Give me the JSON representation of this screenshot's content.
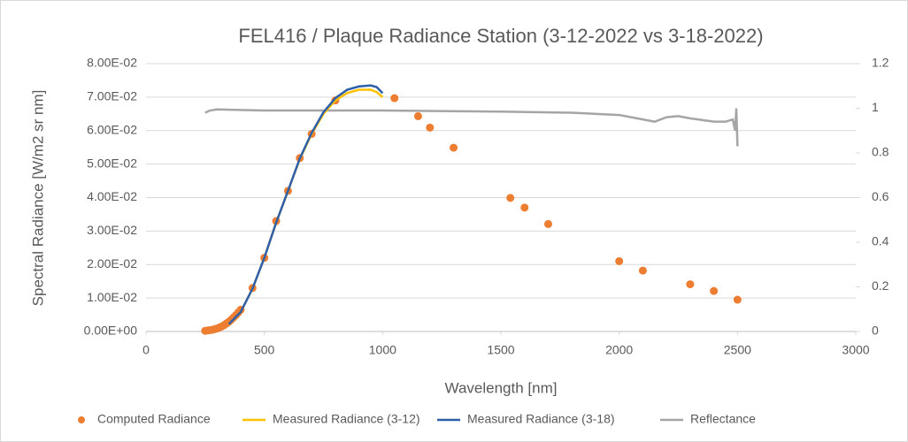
{
  "chart_data": {
    "type": "line",
    "title": "FEL416 / Plaque Radiance Station (3-12-2022 vs 3-18-2022)",
    "x_label": "Wavelength [nm]",
    "y_label": "Spectral Radiance [W/m2 sr nm]",
    "xlim": [
      0,
      3000
    ],
    "xticks": [
      0,
      500,
      1000,
      1500,
      2000,
      2500,
      3000
    ],
    "ylim": [
      0,
      0.08
    ],
    "yticks": [
      {
        "value": 0,
        "label": "0.00E+00"
      },
      {
        "value": 0.01,
        "label": "1.00E-02"
      },
      {
        "value": 0.02,
        "label": "2.00E-02"
      },
      {
        "value": 0.03,
        "label": "3.00E-02"
      },
      {
        "value": 0.04,
        "label": "4.00E-02"
      },
      {
        "value": 0.05,
        "label": "5.00E-02"
      },
      {
        "value": 0.06,
        "label": "6.00E-02"
      },
      {
        "value": 0.07,
        "label": "7.00E-02"
      },
      {
        "value": 0.08,
        "label": "8.00E-02"
      }
    ],
    "y2lim": [
      0,
      1.2
    ],
    "y2ticks": [
      0,
      0.2,
      0.4,
      0.6,
      0.8,
      1,
      1.2
    ],
    "grid": true,
    "legend": "bottom",
    "series": [
      {
        "name": "Computed Radiance",
        "type": "scatter",
        "color": "#ed7d31",
        "x": [
          250,
          260,
          270,
          280,
          290,
          300,
          310,
          320,
          330,
          340,
          350,
          360,
          370,
          380,
          390,
          400,
          450,
          500,
          550,
          600,
          650,
          700,
          800,
          1050,
          1150,
          1200,
          1300,
          1540,
          1600,
          1700,
          2000,
          2100,
          2300,
          2400,
          2500
        ],
        "values": [
          0.0002,
          0.0003,
          0.0004,
          0.0005,
          0.0007,
          0.0009,
          0.0012,
          0.0015,
          0.0019,
          0.0024,
          0.0029,
          0.0035,
          0.0042,
          0.0049,
          0.0057,
          0.0065,
          0.013,
          0.022,
          0.033,
          0.042,
          0.0518,
          0.059,
          0.069,
          0.0697,
          0.0643,
          0.0609,
          0.0549,
          0.0399,
          0.037,
          0.0321,
          0.021,
          0.0182,
          0.0141,
          0.0121,
          0.0095
        ]
      },
      {
        "name": "Measured Radiance (3-12)",
        "type": "line",
        "color": "#ffc000",
        "x": [
          350,
          400,
          450,
          500,
          550,
          600,
          650,
          700,
          750,
          800,
          850,
          900,
          950,
          975,
          1000
        ],
        "values": [
          0.0022,
          0.0058,
          0.0128,
          0.022,
          0.0325,
          0.042,
          0.0515,
          0.059,
          0.065,
          0.069,
          0.0712,
          0.0722,
          0.0722,
          0.0715,
          0.07
        ]
      },
      {
        "name": "Measured Radiance (3-18)",
        "type": "line",
        "color": "#2e5fa8",
        "x": [
          350,
          400,
          450,
          500,
          550,
          600,
          650,
          700,
          750,
          800,
          850,
          900,
          950,
          975,
          1000
        ],
        "values": [
          0.0022,
          0.0058,
          0.0128,
          0.022,
          0.0325,
          0.042,
          0.0517,
          0.0593,
          0.0655,
          0.0697,
          0.0722,
          0.0732,
          0.0735,
          0.073,
          0.0712
        ]
      },
      {
        "name": "Reflectance",
        "type": "line",
        "axis": "y2",
        "color": "#a5a5a5",
        "x": [
          250,
          270,
          300,
          500,
          1000,
          1500,
          1800,
          2000,
          2100,
          2150,
          2200,
          2250,
          2300,
          2400,
          2450,
          2480,
          2490,
          2495,
          2500
        ],
        "values": [
          0.98,
          0.99,
          0.995,
          0.99,
          0.99,
          0.985,
          0.98,
          0.97,
          0.95,
          0.94,
          0.96,
          0.965,
          0.955,
          0.94,
          0.94,
          0.95,
          0.9,
          1.0,
          0.83
        ]
      }
    ]
  }
}
